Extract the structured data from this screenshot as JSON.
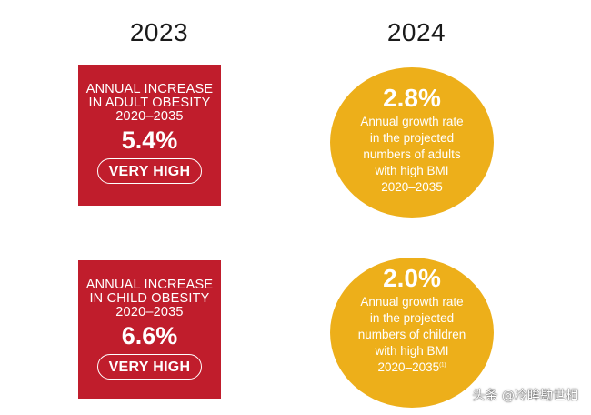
{
  "years": {
    "left": "2023",
    "right": "2024"
  },
  "adult": {
    "heading_line1": "ANNUAL INCREASE",
    "heading_line2": "IN ADULT OBESITY",
    "period": "2020–2035",
    "value": "5.4%",
    "rating": "VERY HIGH",
    "growth_value": "2.8%",
    "growth_line1": "Annual growth rate",
    "growth_line2": "in the projected",
    "growth_line3": "numbers of adults",
    "growth_line4": "with high BMI",
    "growth_period": "2020–2035"
  },
  "child": {
    "heading_line1": "ANNUAL INCREASE",
    "heading_line2": "IN CHILD OBESITY",
    "period": "2020–2035",
    "value": "6.6%",
    "rating": "VERY HIGH",
    "growth_value": "2.0%",
    "growth_line1": "Annual growth rate",
    "growth_line2": "in  the projected",
    "growth_line3": "numbers of children",
    "growth_line4": "with high BMI",
    "growth_period": "2020–2035",
    "growth_footnote": "(1)"
  },
  "watermark": "头条 @冷眸勘世相",
  "colors": {
    "red_box": "#c01d2c",
    "yellow_circle": "#edaf1a",
    "text_light": "#ffffff",
    "year_text": "#1a1a1a"
  }
}
